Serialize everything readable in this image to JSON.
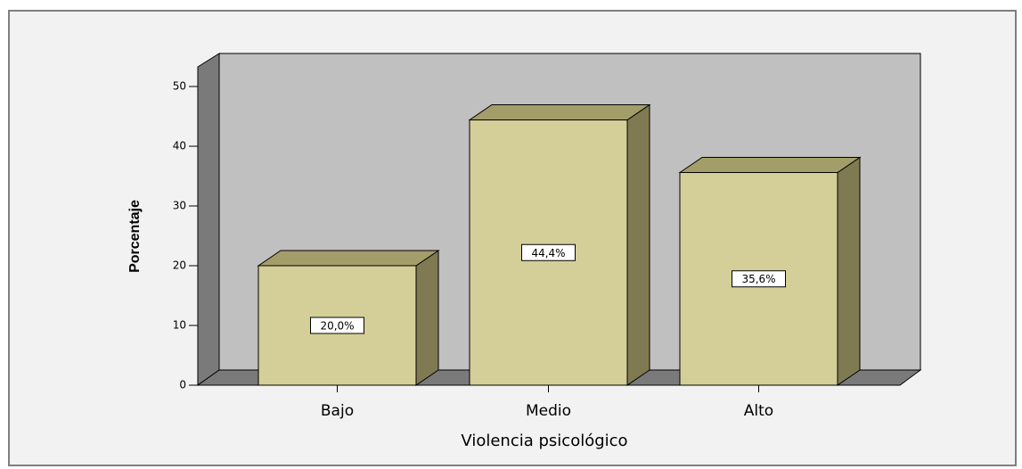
{
  "chart_data": {
    "type": "bar3d",
    "x_label": "Violencia psicológico",
    "y_label": "Porcentaje",
    "categories": [
      "Bajo",
      "Medio",
      "Alto"
    ],
    "values": [
      20,
      44.4,
      35.6
    ],
    "value_labels": [
      "20,0%",
      "44,4%",
      "35,6%"
    ],
    "color": "#d4cf98",
    "ylim": [
      0,
      50
    ],
    "yticks": [
      0,
      10,
      20,
      30,
      40,
      50
    ]
  }
}
